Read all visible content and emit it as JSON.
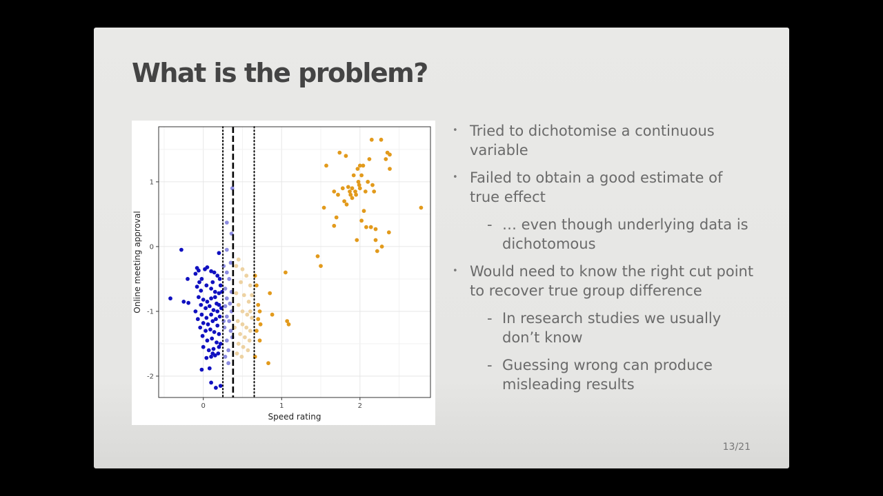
{
  "slide": {
    "title": "What is the problem?",
    "page_number": "13/21",
    "bullets": [
      {
        "level": 1,
        "text": "Tried to dichotomise a continuous variable"
      },
      {
        "level": 1,
        "text": "Failed to obtain a good estimate of true effect"
      },
      {
        "level": 2,
        "text": "… even though underlying data is dichotomous"
      },
      {
        "level": 1,
        "text": "Would need to know the right cut point to recover true group difference"
      },
      {
        "level": 2,
        "text": "In research studies we usually don’t know"
      },
      {
        "level": 2,
        "text": "Guessing wrong can produce misleading results"
      }
    ]
  },
  "chart_data": {
    "type": "scatter",
    "title": "",
    "xlabel": "Speed rating",
    "ylabel": "Online meeting approval",
    "xlim": [
      -0.57,
      2.9
    ],
    "ylim": [
      -2.33,
      1.85
    ],
    "xticks": [
      0,
      1,
      2
    ],
    "yticks": [
      -2,
      -1,
      0,
      1
    ],
    "grid": true,
    "legend": "none",
    "cut_lines": [
      {
        "x": 0.25,
        "style": "dotted"
      },
      {
        "x": 0.38,
        "style": "dashed"
      },
      {
        "x": 0.65,
        "style": "dotted"
      }
    ],
    "series": [
      {
        "color": "#1010c0",
        "points": [
          [
            -0.28,
            -0.05
          ],
          [
            -0.42,
            -0.8
          ],
          [
            -0.25,
            -0.85
          ],
          [
            -0.19,
            -0.87
          ],
          [
            -0.2,
            -0.5
          ],
          [
            -0.08,
            -0.33
          ],
          [
            -0.06,
            -0.37
          ],
          [
            -0.1,
            -0.42
          ],
          [
            -0.05,
            -0.55
          ],
          [
            -0.02,
            -0.5
          ],
          [
            0.02,
            -0.35
          ],
          [
            0.05,
            -0.32
          ],
          [
            0.1,
            -0.38
          ],
          [
            0.14,
            -0.4
          ],
          [
            0.18,
            -0.45
          ],
          [
            0.2,
            -0.1
          ],
          [
            0.21,
            -0.5
          ],
          [
            -0.08,
            -0.62
          ],
          [
            -0.03,
            -0.68
          ],
          [
            0.04,
            -0.6
          ],
          [
            0.1,
            -0.65
          ],
          [
            0.15,
            -0.7
          ],
          [
            0.2,
            -0.72
          ],
          [
            0.22,
            -0.6
          ],
          [
            -0.06,
            -0.78
          ],
          [
            0.0,
            -0.82
          ],
          [
            0.05,
            -0.85
          ],
          [
            0.1,
            -0.8
          ],
          [
            0.15,
            -0.78
          ],
          [
            0.2,
            -0.9
          ],
          [
            0.23,
            -0.95
          ],
          [
            -0.03,
            -0.9
          ],
          [
            0.03,
            -0.95
          ],
          [
            0.08,
            -0.92
          ],
          [
            0.13,
            -0.98
          ],
          [
            0.17,
            -0.88
          ],
          [
            -0.1,
            -1.0
          ],
          [
            -0.02,
            -1.05
          ],
          [
            0.04,
            -1.1
          ],
          [
            0.1,
            -1.05
          ],
          [
            0.16,
            -1.12
          ],
          [
            0.21,
            -1.08
          ],
          [
            -0.07,
            -1.12
          ],
          [
            0.0,
            -1.18
          ],
          [
            0.06,
            -1.2
          ],
          [
            0.12,
            -1.15
          ],
          [
            0.18,
            -1.22
          ],
          [
            -0.04,
            -1.25
          ],
          [
            0.03,
            -1.3
          ],
          [
            0.09,
            -1.28
          ],
          [
            0.14,
            -1.32
          ],
          [
            0.2,
            -1.35
          ],
          [
            -0.01,
            -1.38
          ],
          [
            0.05,
            -1.45
          ],
          [
            0.11,
            -1.42
          ],
          [
            0.17,
            -1.48
          ],
          [
            0.22,
            -1.5
          ],
          [
            0.0,
            -1.55
          ],
          [
            0.07,
            -1.6
          ],
          [
            0.13,
            -1.58
          ],
          [
            0.19,
            -1.65
          ],
          [
            0.1,
            -1.7
          ],
          [
            0.15,
            -1.68
          ],
          [
            0.04,
            -1.72
          ],
          [
            0.2,
            -1.55
          ],
          [
            -0.02,
            -1.9
          ],
          [
            0.08,
            -1.88
          ],
          [
            0.12,
            -1.65
          ],
          [
            0.1,
            -2.1
          ],
          [
            0.16,
            -2.18
          ],
          [
            0.22,
            -2.15
          ],
          [
            0.18,
            -1.0
          ],
          [
            0.12,
            -0.55
          ],
          [
            0.24,
            -0.7
          ]
        ]
      },
      {
        "color": "#8c8ce0",
        "points": [
          [
            0.37,
            0.9
          ],
          [
            0.3,
            0.37
          ],
          [
            0.36,
            0.2
          ],
          [
            0.3,
            -0.05
          ],
          [
            0.35,
            -0.25
          ],
          [
            0.3,
            -0.4
          ],
          [
            0.33,
            -0.5
          ],
          [
            0.28,
            -0.65
          ],
          [
            0.36,
            -0.7
          ],
          [
            0.3,
            -0.8
          ],
          [
            0.34,
            -0.88
          ],
          [
            0.28,
            -0.92
          ],
          [
            0.36,
            -1.0
          ],
          [
            0.3,
            -1.08
          ],
          [
            0.33,
            -1.15
          ],
          [
            0.27,
            -1.25
          ],
          [
            0.35,
            -1.3
          ],
          [
            0.3,
            -1.45
          ],
          [
            0.32,
            -1.6
          ],
          [
            0.28,
            -1.7
          ],
          [
            0.32,
            -1.8
          ],
          [
            0.26,
            -0.3
          ],
          [
            0.37,
            -1.4
          ],
          [
            0.26,
            -1.15
          ]
        ]
      },
      {
        "color": "#edd2a2",
        "points": [
          [
            0.42,
            -0.3
          ],
          [
            0.45,
            -0.2
          ],
          [
            0.5,
            -0.35
          ],
          [
            0.55,
            -0.45
          ],
          [
            0.6,
            -0.6
          ],
          [
            0.48,
            -0.55
          ],
          [
            0.42,
            -0.72
          ],
          [
            0.52,
            -0.75
          ],
          [
            0.58,
            -0.85
          ],
          [
            0.45,
            -0.9
          ],
          [
            0.5,
            -1.0
          ],
          [
            0.56,
            -1.05
          ],
          [
            0.62,
            -1.1
          ],
          [
            0.44,
            -1.15
          ],
          [
            0.5,
            -1.2
          ],
          [
            0.55,
            -1.25
          ],
          [
            0.6,
            -1.3
          ],
          [
            0.47,
            -1.35
          ],
          [
            0.53,
            -1.4
          ],
          [
            0.59,
            -1.45
          ],
          [
            0.45,
            -1.5
          ],
          [
            0.51,
            -1.55
          ],
          [
            0.57,
            -1.6
          ],
          [
            0.43,
            -1.65
          ],
          [
            0.49,
            -1.7
          ],
          [
            0.62,
            -0.75
          ],
          [
            0.4,
            -1.25
          ],
          [
            0.6,
            -1.0
          ]
        ]
      },
      {
        "color": "#e29a1c",
        "points": [
          [
            0.66,
            -0.45
          ],
          [
            0.68,
            -0.6
          ],
          [
            0.7,
            -0.9
          ],
          [
            0.72,
            -1.0
          ],
          [
            0.7,
            -1.12
          ],
          [
            0.73,
            -1.2
          ],
          [
            0.68,
            -1.3
          ],
          [
            0.72,
            -1.45
          ],
          [
            0.66,
            -1.7
          ],
          [
            0.85,
            -0.72
          ],
          [
            0.88,
            -1.05
          ],
          [
            0.83,
            -1.8
          ],
          [
            1.05,
            -0.4
          ],
          [
            1.07,
            -1.15
          ],
          [
            1.09,
            -1.2
          ],
          [
            1.46,
            -0.15
          ],
          [
            1.5,
            -0.3
          ],
          [
            1.54,
            0.6
          ],
          [
            1.57,
            1.25
          ],
          [
            1.67,
            0.32
          ],
          [
            1.67,
            0.85
          ],
          [
            1.7,
            0.45
          ],
          [
            1.72,
            0.8
          ],
          [
            1.74,
            1.45
          ],
          [
            1.78,
            0.9
          ],
          [
            1.8,
            0.7
          ],
          [
            1.82,
            1.4
          ],
          [
            1.83,
            0.65
          ],
          [
            1.85,
            0.92
          ],
          [
            1.87,
            0.85
          ],
          [
            1.88,
            0.8
          ],
          [
            1.9,
            0.75
          ],
          [
            1.9,
            0.9
          ],
          [
            1.92,
            1.1
          ],
          [
            1.94,
            0.85
          ],
          [
            1.95,
            0.8
          ],
          [
            1.97,
            1.2
          ],
          [
            1.98,
            1.0
          ],
          [
            1.99,
            0.95
          ],
          [
            1.96,
            0.1
          ],
          [
            2.0,
            1.25
          ],
          [
            2.0,
            0.9
          ],
          [
            2.02,
            1.1
          ],
          [
            2.02,
            0.4
          ],
          [
            2.04,
            1.25
          ],
          [
            2.05,
            0.55
          ],
          [
            2.07,
            0.85
          ],
          [
            2.08,
            0.3
          ],
          [
            2.1,
            1.0
          ],
          [
            2.12,
            1.35
          ],
          [
            2.14,
            0.3
          ],
          [
            2.15,
            1.65
          ],
          [
            2.16,
            0.95
          ],
          [
            2.18,
            0.85
          ],
          [
            2.2,
            0.1
          ],
          [
            2.2,
            0.27
          ],
          [
            2.22,
            -0.07
          ],
          [
            2.27,
            1.65
          ],
          [
            2.28,
            0.0
          ],
          [
            2.33,
            1.35
          ],
          [
            2.35,
            1.45
          ],
          [
            2.37,
            0.22
          ],
          [
            2.38,
            1.42
          ],
          [
            2.38,
            1.2
          ],
          [
            2.78,
            0.6
          ]
        ]
      }
    ]
  }
}
